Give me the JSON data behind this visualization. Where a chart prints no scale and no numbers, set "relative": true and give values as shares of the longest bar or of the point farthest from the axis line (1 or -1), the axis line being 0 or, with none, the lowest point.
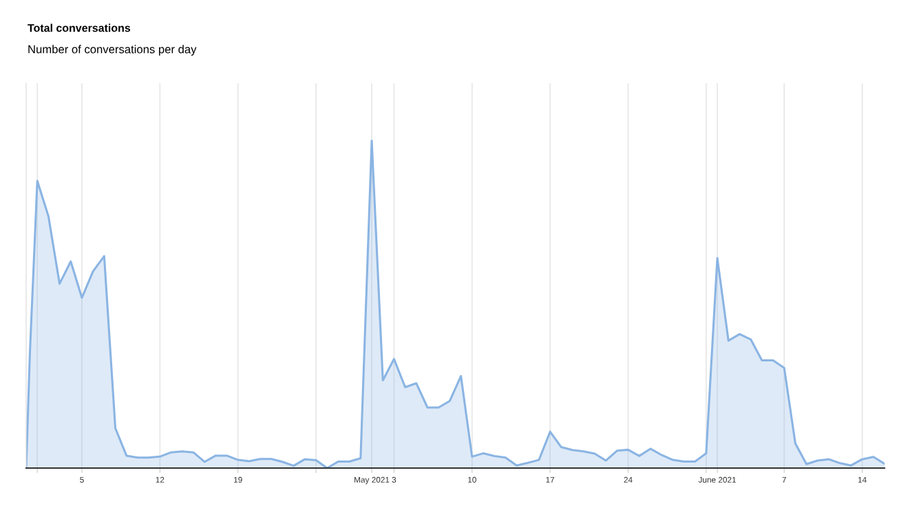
{
  "chart_data": {
    "type": "area",
    "title": "Total conversations",
    "subtitle": "Number of conversations per day",
    "relative": true,
    "grid": "x",
    "legend": false,
    "xlim": [
      "2021-03-31",
      "2021-06-16"
    ],
    "xticks": [
      {
        "value": "2021-04-01",
        "label": null
      },
      {
        "value": "2021-04-05",
        "label": "5"
      },
      {
        "value": "2021-04-12",
        "label": "12"
      },
      {
        "value": "2021-04-19",
        "label": "19"
      },
      {
        "value": "2021-04-26",
        "label": null
      },
      {
        "value": "2021-05-01",
        "label": "May 2021"
      },
      {
        "value": "2021-05-03",
        "label": "3"
      },
      {
        "value": "2021-05-10",
        "label": "10"
      },
      {
        "value": "2021-05-17",
        "label": "17"
      },
      {
        "value": "2021-05-24",
        "label": "24"
      },
      {
        "value": "2021-05-31",
        "label": null
      },
      {
        "value": "2021-06-01",
        "label": "June 2021"
      },
      {
        "value": "2021-06-07",
        "label": "7"
      },
      {
        "value": "2021-06-14",
        "label": "14"
      }
    ],
    "series": [
      {
        "color": "#8ab4e3",
        "x": [
          "2021-03-31",
          "2021-03-31T08:00",
          "2021-04-01",
          "2021-04-02",
          "2021-04-03",
          "2021-04-04",
          "2021-04-05",
          "2021-04-06",
          "2021-04-07",
          "2021-04-08",
          "2021-04-09",
          "2021-04-10",
          "2021-04-11",
          "2021-04-12",
          "2021-04-13",
          "2021-04-14",
          "2021-04-15",
          "2021-04-16",
          "2021-04-17",
          "2021-04-18",
          "2021-04-19",
          "2021-04-20",
          "2021-04-21",
          "2021-04-22",
          "2021-04-23",
          "2021-04-24",
          "2021-04-25",
          "2021-04-26",
          "2021-04-27",
          "2021-04-28",
          "2021-04-29",
          "2021-04-30",
          "2021-05-01",
          "2021-05-02",
          "2021-05-03",
          "2021-05-04",
          "2021-05-05",
          "2021-05-06",
          "2021-05-07",
          "2021-05-08",
          "2021-05-09",
          "2021-05-10",
          "2021-05-11",
          "2021-05-12",
          "2021-05-13",
          "2021-05-14",
          "2021-05-15",
          "2021-05-16",
          "2021-05-17",
          "2021-05-18",
          "2021-05-19",
          "2021-05-20",
          "2021-05-21",
          "2021-05-22",
          "2021-05-23",
          "2021-05-24",
          "2021-05-25",
          "2021-05-26",
          "2021-05-27",
          "2021-05-28",
          "2021-05-29",
          "2021-05-30",
          "2021-05-31",
          "2021-06-01",
          "2021-06-02",
          "2021-06-03",
          "2021-06-04",
          "2021-06-05",
          "2021-06-06",
          "2021-06-07",
          "2021-06-08",
          "2021-06-09",
          "2021-06-10",
          "2021-06-11",
          "2021-06-12",
          "2021-06-13",
          "2021-06-14",
          "2021-06-15",
          "2021-06-16"
        ],
        "values": [
          0,
          0.35,
          0.877,
          0.769,
          0.563,
          0.631,
          0.52,
          0.601,
          0.647,
          0.122,
          0.038,
          0.032,
          0.032,
          0.035,
          0.048,
          0.051,
          0.048,
          0.019,
          0.038,
          0.038,
          0.025,
          0.021,
          0.028,
          0.028,
          0.019,
          0.007,
          0.027,
          0.024,
          0.0,
          0.02,
          0.02,
          0.03,
          1.0,
          0.268,
          0.333,
          0.247,
          0.259,
          0.185,
          0.185,
          0.205,
          0.281,
          0.035,
          0.045,
          0.037,
          0.032,
          0.008,
          0.016,
          0.025,
          0.111,
          0.064,
          0.055,
          0.051,
          0.044,
          0.023,
          0.053,
          0.056,
          0.037,
          0.059,
          0.04,
          0.025,
          0.02,
          0.02,
          0.045,
          0.641,
          0.389,
          0.409,
          0.393,
          0.329,
          0.329,
          0.306,
          0.075,
          0.012,
          0.023,
          0.027,
          0.015,
          0.008,
          0.027,
          0.034,
          0.013
        ]
      }
    ]
  }
}
